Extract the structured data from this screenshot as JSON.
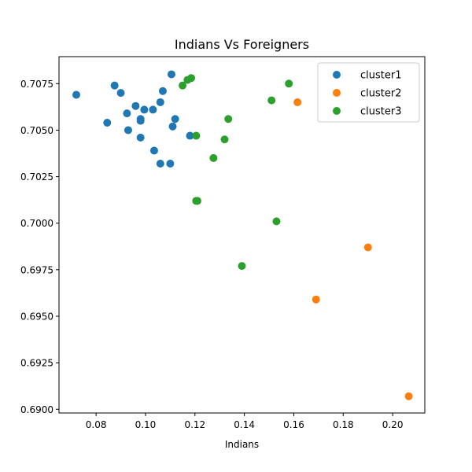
{
  "chart_data": {
    "type": "scatter",
    "title": "Indians Vs Foreigners",
    "xlabel": "Indians",
    "ylabel": "",
    "xlim": [
      0.065,
      0.213
    ],
    "ylim": [
      0.6898,
      0.70895
    ],
    "xticks": [
      0.08,
      0.1,
      0.12,
      0.14,
      0.16,
      0.18,
      0.2
    ],
    "xtick_labels": [
      "0.08",
      "0.10",
      "0.12",
      "0.14",
      "0.16",
      "0.18",
      "0.20"
    ],
    "yticks": [
      0.69,
      0.6925,
      0.695,
      0.6975,
      0.7,
      0.7025,
      0.705,
      0.7075
    ],
    "ytick_labels": [
      "0.6900",
      "0.6925",
      "0.6950",
      "0.6975",
      "0.7000",
      "0.7025",
      "0.7050",
      "0.7075"
    ],
    "grid": false,
    "legend_position": "top-right",
    "series": [
      {
        "name": "cluster1",
        "color": "#1f77b4",
        "points": [
          [
            0.072,
            0.7069
          ],
          [
            0.0845,
            0.7054
          ],
          [
            0.0875,
            0.7074
          ],
          [
            0.09,
            0.707
          ],
          [
            0.0925,
            0.7059
          ],
          [
            0.093,
            0.705
          ],
          [
            0.096,
            0.7063
          ],
          [
            0.098,
            0.7055
          ],
          [
            0.098,
            0.7056
          ],
          [
            0.098,
            0.7046
          ],
          [
            0.0995,
            0.7061
          ],
          [
            0.103,
            0.7061
          ],
          [
            0.1035,
            0.7039
          ],
          [
            0.106,
            0.7065
          ],
          [
            0.107,
            0.7071
          ],
          [
            0.106,
            0.7032
          ],
          [
            0.11,
            0.7032
          ],
          [
            0.1105,
            0.708
          ],
          [
            0.111,
            0.7052
          ],
          [
            0.112,
            0.7056
          ],
          [
            0.118,
            0.7047
          ]
        ]
      },
      {
        "name": "cluster2",
        "color": "#ff7f0e",
        "points": [
          [
            0.1615,
            0.7065
          ],
          [
            0.169,
            0.6959
          ],
          [
            0.19,
            0.6987
          ],
          [
            0.2065,
            0.6907
          ]
        ]
      },
      {
        "name": "cluster3",
        "color": "#2ca02c",
        "points": [
          [
            0.115,
            0.7074
          ],
          [
            0.117,
            0.7077
          ],
          [
            0.1185,
            0.7078
          ],
          [
            0.1205,
            0.7047
          ],
          [
            0.1205,
            0.7012
          ],
          [
            0.121,
            0.7012
          ],
          [
            0.1275,
            0.7035
          ],
          [
            0.132,
            0.7045
          ],
          [
            0.1335,
            0.7056
          ],
          [
            0.139,
            0.6977
          ],
          [
            0.151,
            0.7066
          ],
          [
            0.153,
            0.7001
          ],
          [
            0.158,
            0.7075
          ]
        ]
      }
    ]
  }
}
